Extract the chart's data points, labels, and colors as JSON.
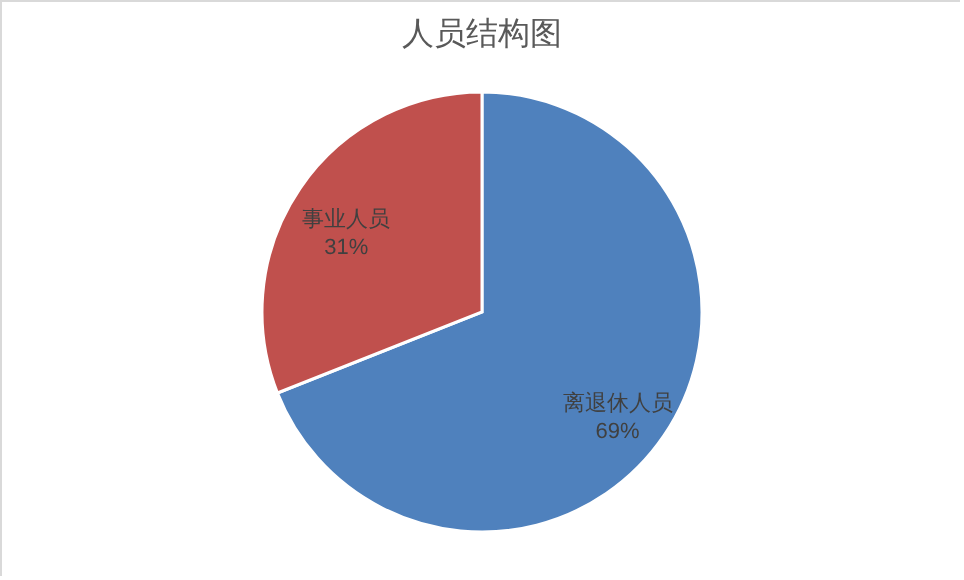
{
  "chart_data": {
    "type": "pie",
    "title": "人员结构图",
    "categories": [
      "离退休人员",
      "事业人员"
    ],
    "values": [
      69,
      31
    ],
    "colors": [
      "#4f81bd",
      "#c0504d"
    ],
    "value_labels": [
      "69%",
      "31%"
    ],
    "legend": false
  }
}
